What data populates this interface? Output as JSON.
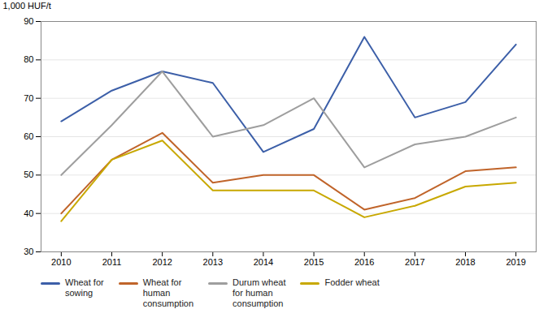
{
  "chart_data": {
    "type": "line",
    "x": [
      2010,
      2011,
      2012,
      2013,
      2014,
      2015,
      2016,
      2017,
      2018,
      2019
    ],
    "series": [
      {
        "name": "Wheat for\nsowing",
        "color": "#3C5FA8",
        "values": [
          64,
          72,
          77,
          74,
          56,
          62,
          86,
          65,
          69,
          84
        ]
      },
      {
        "name": "Wheat for\nhuman\nconsumption",
        "color": "#C0642A",
        "values": [
          40,
          54,
          61,
          48,
          50,
          50,
          41,
          44,
          51,
          52
        ]
      },
      {
        "name": "Durum wheat\nfor human\nconsumption",
        "color": "#9E9E9E",
        "values": [
          50,
          63,
          77,
          60,
          63,
          70,
          52,
          58,
          60,
          65
        ]
      },
      {
        "name": "Fodder wheat",
        "color": "#C8A800",
        "values": [
          38,
          54,
          59,
          46,
          46,
          46,
          39,
          42,
          47,
          48
        ]
      }
    ],
    "ylabel": "1,000 HUF/t",
    "xlim": [
      2009.6,
      2019.4
    ],
    "xticks": [
      2010,
      2011,
      2012,
      2013,
      2014,
      2015,
      2016,
      2017,
      2018,
      2019
    ],
    "ylim": [
      30,
      90
    ],
    "yticks": [
      30,
      40,
      50,
      60,
      70,
      80,
      90
    ],
    "grid": "y",
    "legend": "bottom"
  }
}
